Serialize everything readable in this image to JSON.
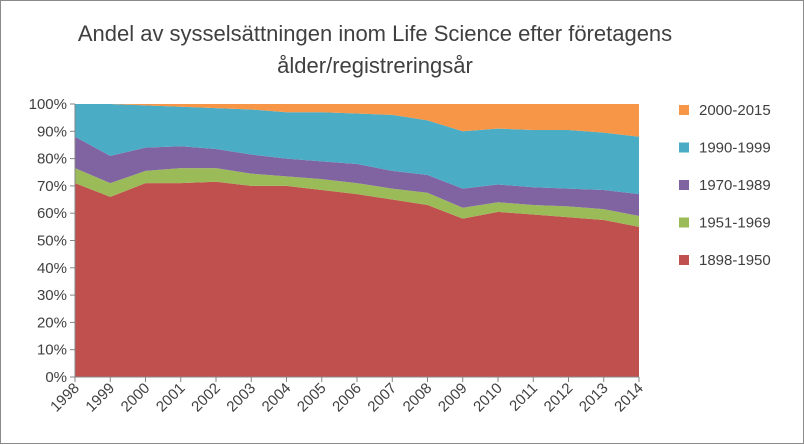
{
  "chart_data": {
    "type": "area",
    "stacked": true,
    "title_lines": [
      "Andel av sysselsättningen inom Life Science efter företagens",
      "ålder/registreringsår"
    ],
    "categories": [
      "1998",
      "1999",
      "2000",
      "2001",
      "2002",
      "2003",
      "2004",
      "2005",
      "2006",
      "2007",
      "2008",
      "2009",
      "2010",
      "2011",
      "2012",
      "2013",
      "2014"
    ],
    "ylim": [
      0,
      100
    ],
    "yticks": [
      "0%",
      "10%",
      "20%",
      "30%",
      "40%",
      "50%",
      "60%",
      "70%",
      "80%",
      "90%",
      "100%"
    ],
    "series": [
      {
        "name": "1898-1950",
        "color": "#c0504d",
        "values": [
          71,
          66,
          71,
          71,
          71.5,
          70,
          70,
          68.5,
          67,
          65,
          63,
          58,
          60.5,
          59.5,
          58.5,
          57.5,
          55
        ]
      },
      {
        "name": "1951-1969",
        "color": "#9bbb59",
        "values": [
          5.5,
          5,
          4.5,
          5.5,
          5,
          4.5,
          3.5,
          4,
          4,
          4,
          4.5,
          4,
          3.5,
          3.5,
          4,
          4,
          4
        ]
      },
      {
        "name": "1970-1989",
        "color": "#8064a2",
        "values": [
          11.5,
          10,
          8.5,
          8,
          7,
          7,
          6.5,
          6.5,
          7,
          6.5,
          6.5,
          7,
          6.5,
          6.5,
          6.5,
          7,
          8
        ]
      },
      {
        "name": "1990-1999",
        "color": "#4bacc6",
        "values": [
          12,
          19,
          15.5,
          14.5,
          15,
          16.5,
          17,
          18,
          18.5,
          20.5,
          20,
          21,
          20.5,
          21,
          21.5,
          21,
          21
        ]
      },
      {
        "name": "2000-2015",
        "color": "#f79646",
        "values": [
          0,
          0,
          0.5,
          1,
          1.5,
          2,
          3,
          3,
          3.5,
          4,
          6,
          10,
          9,
          9.5,
          9.5,
          10.5,
          12
        ]
      }
    ],
    "legend": {
      "position": "right",
      "order": [
        "2000-2015",
        "1990-1999",
        "1970-1989",
        "1951-1969",
        "1898-1950"
      ]
    },
    "grid": false
  }
}
